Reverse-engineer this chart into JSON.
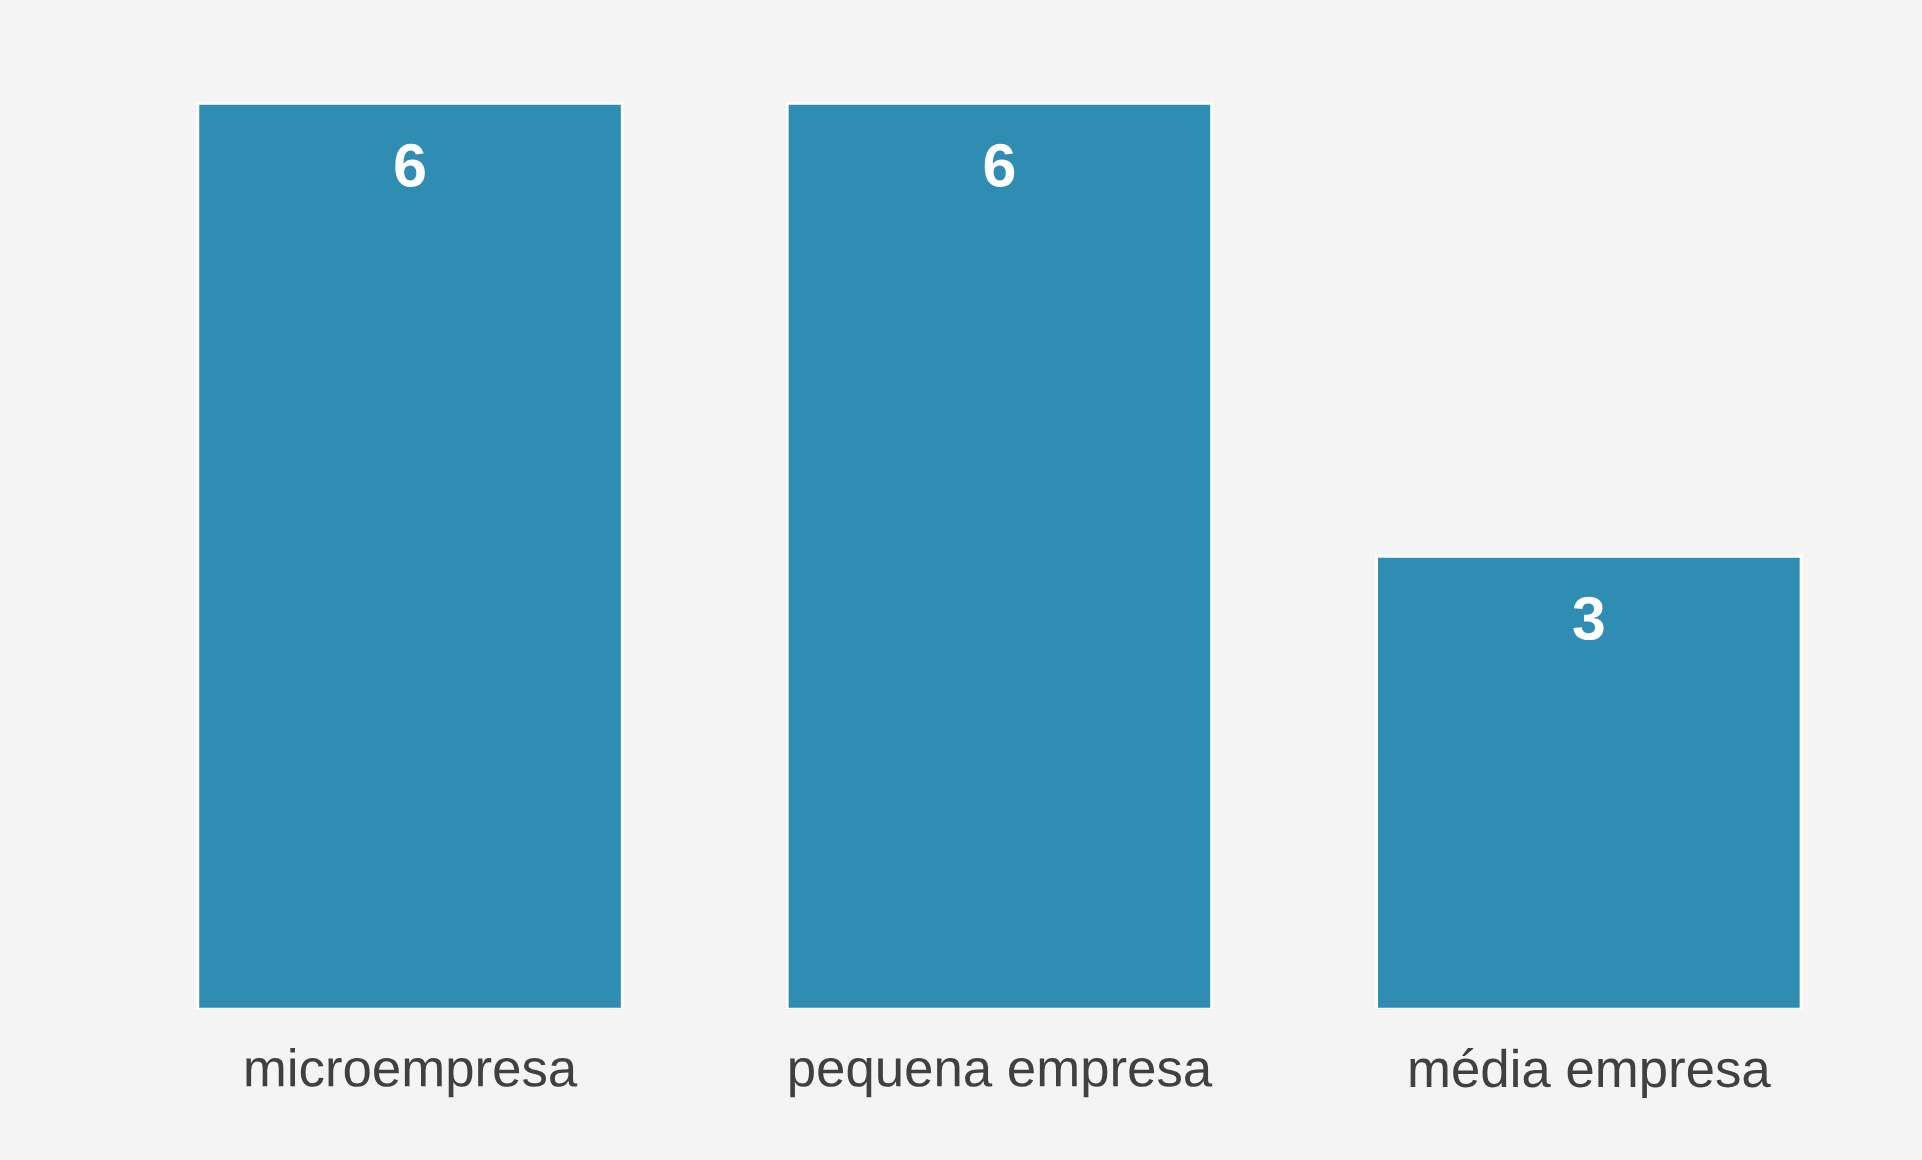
{
  "chart_data": {
    "type": "bar",
    "categories": [
      "microempresa",
      "pequena empresa",
      "média empresa"
    ],
    "values": [
      6,
      6,
      3
    ],
    "color": "#2f8cb3",
    "data_labels": true
  }
}
